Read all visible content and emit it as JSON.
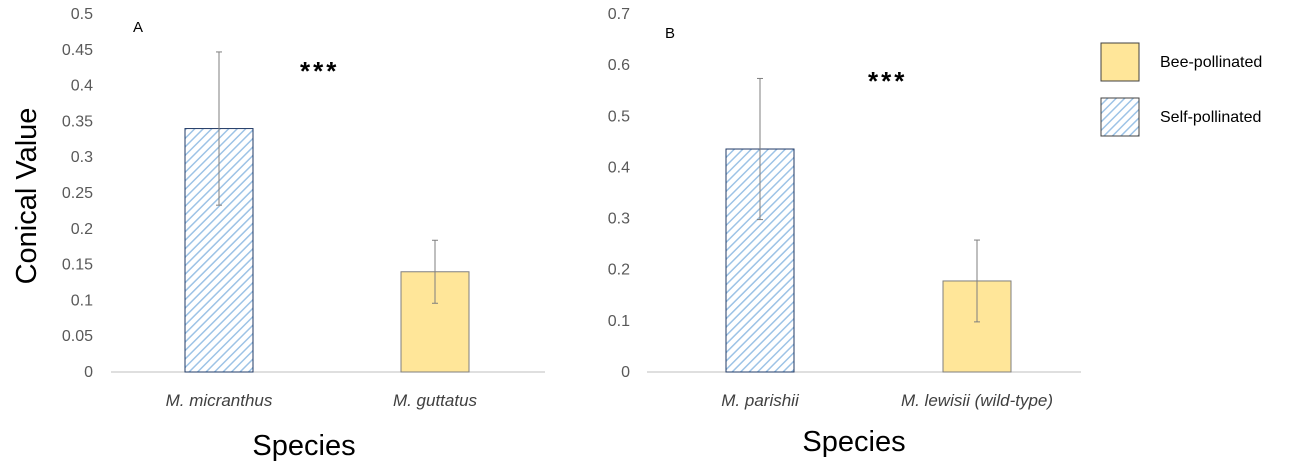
{
  "chart_data": [
    {
      "type": "bar",
      "panel_label": "A",
      "categories": [
        "M. micranthus",
        "M. guttatus"
      ],
      "series": [
        {
          "values": [
            0.34,
            0.14
          ],
          "error": [
            0.107,
            0.044
          ],
          "pollination": [
            "Self-pollinated",
            "Bee-pollinated"
          ]
        }
      ],
      "significance": "***",
      "ylabel": "Conical Value",
      "xlabel": "Species",
      "ylim": [
        0,
        0.5
      ],
      "yticks": [
        "0",
        "0.05",
        "0.1",
        "0.15",
        "0.2",
        "0.25",
        "0.3",
        "0.35",
        "0.4",
        "0.45",
        "0.5"
      ],
      "grid": false
    },
    {
      "type": "bar",
      "panel_label": "B",
      "categories": [
        "M. parishii",
        "M. lewisii (wild-type)"
      ],
      "series": [
        {
          "values": [
            0.436,
            0.178
          ],
          "error": [
            0.138,
            0.08
          ],
          "pollination": [
            "Self-pollinated",
            "Bee-pollinated"
          ]
        }
      ],
      "significance": "***",
      "xlabel": "Species",
      "ylim": [
        0,
        0.7
      ],
      "yticks": [
        "0",
        "0.1",
        "0.2",
        "0.3",
        "0.4",
        "0.5",
        "0.6",
        "0.7"
      ],
      "grid": false
    }
  ],
  "legend": {
    "placement": "right",
    "items": [
      {
        "label": "Bee-pollinated",
        "fill": "#ffe699",
        "pattern": "solid"
      },
      {
        "label": "Self-pollinated",
        "fill": "#9dc3e6",
        "pattern": "diagonal-hatch"
      }
    ]
  },
  "colors": {
    "bee": "#ffe699",
    "self_hatch": "#9dc3e6",
    "axis": "#bfbfbf",
    "error_bar": "#7f7f7f"
  }
}
